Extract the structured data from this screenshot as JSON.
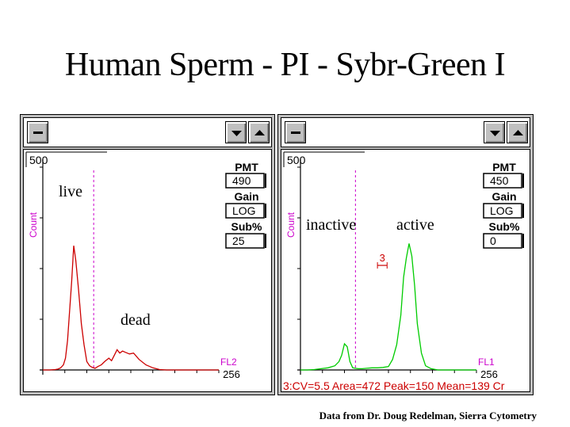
{
  "title": "Human Sperm - PI - Sybr-Green I",
  "credit": "Data from Dr. Doug Redelman, Sierra Cytometry",
  "chart_data": [
    {
      "type": "line",
      "ymax_label": "500",
      "ylabel": "Count",
      "xlabel": "FL2",
      "xmax_label": "256",
      "color": "#cc0000",
      "marker_x": 74,
      "annotations": [
        "live",
        "dead"
      ],
      "side_panel": {
        "pmt_label": "PMT",
        "pmt": "490",
        "gain_label": "Gain",
        "gain": "LOG",
        "sub_label": "Sub%",
        "sub": "25"
      },
      "x": [
        0,
        10,
        18,
        22,
        26,
        30,
        33,
        36,
        39,
        42,
        45,
        48,
        52,
        56,
        60,
        64,
        68,
        72,
        76,
        80,
        85,
        90,
        96,
        100,
        104,
        108,
        112,
        116,
        120,
        126,
        132,
        140,
        150,
        160,
        170,
        180,
        190,
        200,
        210,
        220,
        230,
        240,
        256
      ],
      "y": [
        0,
        0,
        1,
        2,
        5,
        12,
        28,
        70,
        140,
        210,
        295,
        260,
        190,
        110,
        60,
        20,
        10,
        6,
        4,
        8,
        12,
        20,
        28,
        22,
        35,
        48,
        40,
        45,
        42,
        38,
        40,
        25,
        12,
        5,
        1,
        0,
        0,
        0,
        0,
        0,
        0,
        0,
        0
      ]
    },
    {
      "type": "line",
      "ymax_label": "500",
      "ylabel": "Count",
      "xlabel": "FL1",
      "xmax_label": "256",
      "color": "#00cc00",
      "marker_x": 80,
      "annotations": [
        "inactive",
        "active"
      ],
      "side_panel": {
        "pmt_label": "PMT",
        "pmt": "450",
        "gain_label": "Gain",
        "gain": "LOG",
        "sub_label": "Sub%",
        "sub": "0"
      },
      "region_label": "3",
      "stats": "3:CV=5.5 Area=472 Peak=150 Mean=139 Cr",
      "x": [
        0,
        10,
        20,
        30,
        40,
        50,
        56,
        60,
        64,
        68,
        72,
        76,
        80,
        84,
        90,
        96,
        104,
        112,
        120,
        128,
        134,
        140,
        146,
        150,
        154,
        158,
        162,
        166,
        170,
        176,
        182,
        190,
        200,
        210,
        220,
        230,
        240,
        256
      ],
      "y": [
        0,
        0,
        1,
        3,
        5,
        10,
        20,
        35,
        62,
        55,
        20,
        5,
        4,
        3,
        3,
        4,
        5,
        5,
        6,
        8,
        25,
        60,
        130,
        220,
        265,
        300,
        270,
        200,
        110,
        40,
        10,
        3,
        0,
        0,
        0,
        0,
        0,
        0
      ]
    }
  ]
}
